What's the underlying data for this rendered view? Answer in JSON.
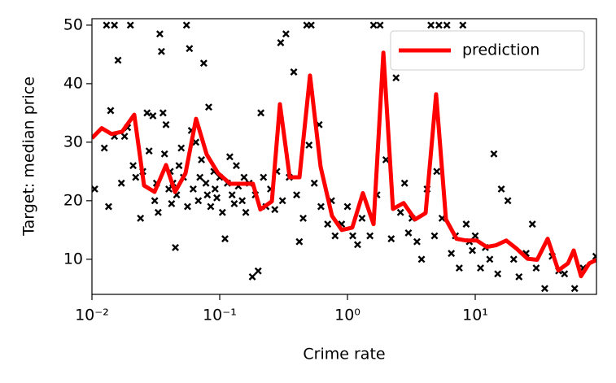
{
  "chart_data": {
    "type": "scatter",
    "xlabel": "Crime rate",
    "ylabel": "Target: median price",
    "xlog": true,
    "xlim": [
      0.01,
      88.9
    ],
    "ylim": [
      4,
      51.1
    ],
    "xticks": [
      {
        "value": 0.01,
        "label": "10⁻²"
      },
      {
        "value": 0.1,
        "label": "10⁻¹"
      },
      {
        "value": 1,
        "label": "10⁰"
      },
      {
        "value": 10,
        "label": "10¹"
      }
    ],
    "yticks": [
      10,
      20,
      30,
      40,
      50
    ],
    "legend": "upper right",
    "series": [
      {
        "type": "scatter",
        "marker": "x",
        "color": "#000000",
        "x": [
          0.0105,
          0.0125,
          0.013,
          0.014,
          0.0135,
          0.015,
          0.016,
          0.015,
          0.017,
          0.018,
          0.019,
          0.02,
          0.021,
          0.022,
          0.024,
          0.025,
          0.027,
          0.028,
          0.03,
          0.031,
          0.032,
          0.033,
          0.034,
          0.035,
          0.036,
          0.037,
          0.038,
          0.04,
          0.041,
          0.042,
          0.043,
          0.045,
          0.046,
          0.048,
          0.05,
          0.052,
          0.055,
          0.056,
          0.058,
          0.06,
          0.062,
          0.065,
          0.068,
          0.07,
          0.072,
          0.075,
          0.078,
          0.08,
          0.082,
          0.085,
          0.09,
          0.092,
          0.095,
          0.1,
          0.105,
          0.11,
          0.115,
          0.12,
          0.125,
          0.13,
          0.135,
          0.14,
          0.15,
          0.155,
          0.16,
          0.17,
          0.18,
          0.19,
          0.2,
          0.21,
          0.22,
          0.23,
          0.25,
          0.27,
          0.28,
          0.3,
          0.31,
          0.33,
          0.35,
          0.38,
          0.4,
          0.42,
          0.45,
          0.48,
          0.5,
          0.52,
          0.55,
          0.6,
          0.62,
          0.7,
          0.75,
          0.8,
          0.9,
          1.0,
          1.1,
          1.2,
          1.3,
          1.5,
          1.6,
          1.7,
          1.8,
          2.0,
          2.2,
          2.4,
          2.6,
          2.8,
          3.0,
          3.2,
          3.5,
          3.8,
          4.2,
          4.5,
          4.8,
          5.0,
          5.2,
          5.5,
          6.0,
          6.5,
          7.0,
          7.5,
          8.0,
          8.5,
          9.0,
          9.5,
          10,
          11,
          12,
          13,
          14,
          15,
          16,
          18,
          20,
          22,
          25,
          28,
          30,
          35,
          40,
          45,
          50,
          60,
          70,
          88
        ],
        "values": [
          22,
          29,
          50,
          35.4,
          19,
          50,
          44,
          31,
          23,
          31,
          32.5,
          50,
          26,
          24,
          17,
          25,
          35,
          28.5,
          34.5,
          20,
          23,
          18,
          48.5,
          45.5,
          35,
          28,
          33,
          22,
          25,
          19.5,
          23,
          12,
          21,
          26,
          29,
          24,
          50,
          19,
          46,
          32,
          22,
          30,
          20,
          24,
          27,
          43.5,
          23,
          21,
          36,
          19,
          25,
          22,
          20.5,
          24,
          18,
          13.5,
          23,
          27.5,
          21,
          19.5,
          26,
          22.5,
          20,
          24,
          18,
          23,
          7,
          21,
          8,
          35,
          24,
          19,
          22,
          18.5,
          25,
          47,
          20,
          48.5,
          24,
          42,
          21,
          13,
          17,
          50,
          29.5,
          50,
          23,
          33,
          19,
          16,
          20,
          14,
          16,
          19,
          14,
          12.5,
          17,
          14,
          50,
          21,
          50,
          27,
          13.5,
          41,
          18,
          23,
          14.5,
          17,
          13,
          10,
          22,
          50,
          14,
          25,
          50,
          17,
          50,
          11,
          14,
          8.5,
          50,
          16,
          13,
          11.5,
          14,
          8.5,
          12,
          10,
          28,
          7.5,
          22,
          20,
          10,
          7,
          11,
          16,
          8.5,
          5,
          10.5,
          8,
          7.5,
          5,
          8.5,
          10.5
        ]
      },
      {
        "type": "line",
        "name": "prediction",
        "color": "#ff0000",
        "x": [
          0.01,
          0.01192,
          0.01422,
          0.01722,
          0.02143,
          0.02557,
          0.0309,
          0.038,
          0.0447,
          0.054,
          0.0653,
          0.0791,
          0.0971,
          0.121,
          0.149,
          0.182,
          0.208,
          0.256,
          0.296,
          0.353,
          0.421,
          0.509,
          0.616,
          0.757,
          0.902,
          1.09,
          1.32,
          1.6,
          1.91,
          2.27,
          2.75,
          3.38,
          4.09,
          4.94,
          5.9,
          7.14,
          8.52,
          10.3,
          12.3,
          14.6,
          17.5,
          21.1,
          25.6,
          30.5,
          36.9,
          44.7,
          53.2,
          59.0,
          67.3,
          78.0,
          88.9
        ],
        "values": [
          30.7,
          32.4,
          31.4,
          31.8,
          34.7,
          22.6,
          21.5,
          26.1,
          21.5,
          24.7,
          34.0,
          27.9,
          24.7,
          22.9,
          22.9,
          22.9,
          18.5,
          19.9,
          36.5,
          24.0,
          24.0,
          41.4,
          25.8,
          17.4,
          15.0,
          15.4,
          21.3,
          16.0,
          45.3,
          18.6,
          19.6,
          16.8,
          17.9,
          38.2,
          16.8,
          13.5,
          13.2,
          13.2,
          12.1,
          12.4,
          13.2,
          11.8,
          10.1,
          9.9,
          13.5,
          8.1,
          9.3,
          11.5,
          7.1,
          9.3,
          9.9
        ]
      }
    ]
  }
}
